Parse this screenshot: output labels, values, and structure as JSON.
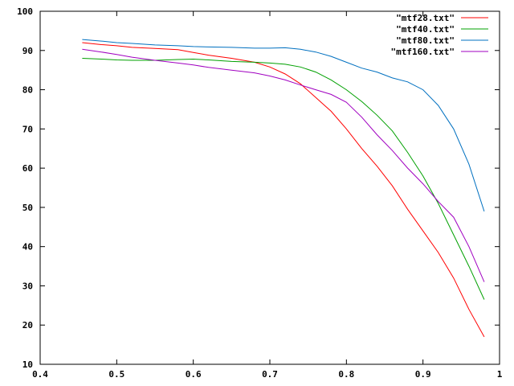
{
  "chart_data": {
    "type": "line",
    "title": "",
    "xlabel": "",
    "ylabel": "",
    "xlim": [
      0.4,
      1.0
    ],
    "ylim": [
      10,
      100
    ],
    "xticks": [
      0.4,
      0.5,
      0.6,
      0.7,
      0.8,
      0.9,
      1.0
    ],
    "xtick_labels": [
      "0.4",
      "0.5",
      "0.6",
      "0.7",
      "0.8",
      "0.9",
      "1"
    ],
    "yticks": [
      10,
      20,
      30,
      40,
      50,
      60,
      70,
      80,
      90,
      100
    ],
    "ytick_labels": [
      "10",
      "20",
      "30",
      "40",
      "50",
      "60",
      "70",
      "80",
      "90",
      "100"
    ],
    "grid": false,
    "legend_position": "top-right",
    "series": [
      {
        "name": "\"mtf28.txt\"",
        "color": "#ff0000",
        "x": [
          0.455,
          0.48,
          0.5,
          0.52,
          0.55,
          0.58,
          0.6,
          0.62,
          0.65,
          0.68,
          0.7,
          0.72,
          0.74,
          0.76,
          0.78,
          0.8,
          0.82,
          0.84,
          0.86,
          0.88,
          0.9,
          0.92,
          0.94,
          0.96,
          0.98
        ],
        "y": [
          92,
          91.5,
          91.2,
          90.8,
          90.5,
          90.2,
          89.5,
          88.8,
          88,
          87,
          85.8,
          84,
          81.5,
          78,
          74.5,
          70,
          65,
          60.5,
          55.5,
          49.5,
          44,
          38.5,
          32,
          24,
          17
        ]
      },
      {
        "name": "\"mtf40.txt\"",
        "color": "#00a000",
        "x": [
          0.455,
          0.48,
          0.5,
          0.52,
          0.55,
          0.58,
          0.6,
          0.62,
          0.65,
          0.68,
          0.7,
          0.72,
          0.74,
          0.76,
          0.78,
          0.8,
          0.82,
          0.84,
          0.86,
          0.88,
          0.9,
          0.92,
          0.94,
          0.96,
          0.98
        ],
        "y": [
          88,
          87.8,
          87.6,
          87.5,
          87.5,
          87.7,
          87.8,
          87.6,
          87.2,
          87,
          86.8,
          86.5,
          85.8,
          84.5,
          82.5,
          80,
          77,
          73.5,
          69.5,
          64,
          58,
          51,
          43,
          35,
          26.5
        ]
      },
      {
        "name": "\"mtf80.txt\"",
        "color": "#0070c0",
        "x": [
          0.455,
          0.48,
          0.5,
          0.52,
          0.55,
          0.58,
          0.6,
          0.62,
          0.65,
          0.68,
          0.7,
          0.72,
          0.74,
          0.76,
          0.78,
          0.8,
          0.82,
          0.84,
          0.86,
          0.88,
          0.9,
          0.92,
          0.94,
          0.96,
          0.98
        ],
        "y": [
          92.8,
          92.4,
          92,
          91.8,
          91.4,
          91.2,
          91,
          90.9,
          90.8,
          90.6,
          90.6,
          90.7,
          90.3,
          89.6,
          88.5,
          87,
          85.5,
          84.5,
          83,
          82,
          80,
          76,
          70,
          61,
          49
        ]
      },
      {
        "name": "\"mtf160.txt\"",
        "color": "#a000c0",
        "x": [
          0.455,
          0.48,
          0.5,
          0.52,
          0.55,
          0.58,
          0.6,
          0.62,
          0.65,
          0.68,
          0.7,
          0.72,
          0.74,
          0.76,
          0.78,
          0.8,
          0.82,
          0.84,
          0.86,
          0.88,
          0.9,
          0.92,
          0.94,
          0.96,
          0.98
        ],
        "y": [
          90.3,
          89.6,
          89,
          88.3,
          87.5,
          86.8,
          86.3,
          85.7,
          85,
          84.3,
          83.5,
          82.5,
          81.2,
          80,
          78.8,
          76.8,
          73,
          68.5,
          64.5,
          60,
          56,
          51.5,
          47.5,
          40,
          31
        ]
      }
    ]
  }
}
